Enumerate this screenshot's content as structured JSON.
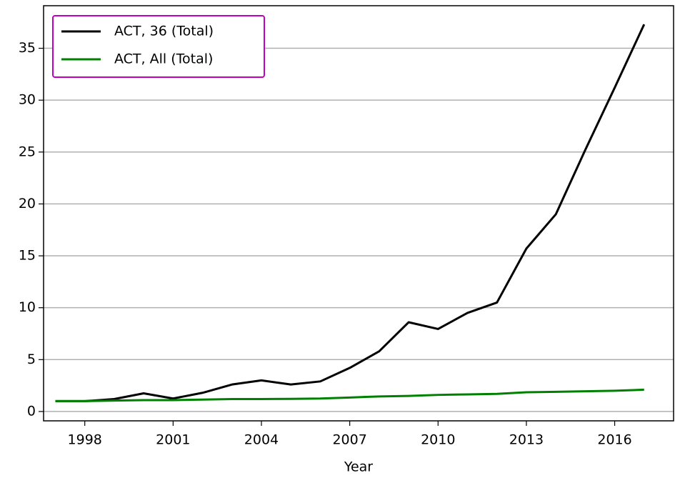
{
  "chart_data": {
    "type": "line",
    "x_label": "Year",
    "x": [
      1997,
      1998,
      1999,
      2000,
      2001,
      2002,
      2003,
      2004,
      2005,
      2006,
      2007,
      2008,
      2009,
      2010,
      2011,
      2012,
      2013,
      2014,
      2015,
      2016,
      2017
    ],
    "series": [
      {
        "name": "ACT, 36 (Total)",
        "color": "#000000",
        "values": [
          1.0,
          1.0,
          1.2,
          1.75,
          1.25,
          1.8,
          2.6,
          3.0,
          2.6,
          2.9,
          4.2,
          5.8,
          8.6,
          7.95,
          9.5,
          10.5,
          15.7,
          19.0,
          25.2,
          31.2,
          37.3
        ]
      },
      {
        "name": "ACT, All (Total)",
        "color": "#008000",
        "values": [
          1.0,
          1.0,
          1.05,
          1.1,
          1.1,
          1.15,
          1.2,
          1.2,
          1.22,
          1.25,
          1.35,
          1.45,
          1.5,
          1.6,
          1.65,
          1.7,
          1.85,
          1.9,
          1.95,
          2.0,
          2.1
        ]
      }
    ],
    "xlim": [
      1996.6,
      2018
    ],
    "xticks": [
      1998,
      2001,
      2004,
      2007,
      2010,
      2013,
      2016
    ],
    "ylim": [
      -0.9,
      39.1
    ],
    "yticks": [
      0,
      5,
      10,
      15,
      20,
      25,
      30,
      35
    ],
    "grid": "y",
    "legend": "upper-left",
    "legend_border": "#bf00bf"
  }
}
